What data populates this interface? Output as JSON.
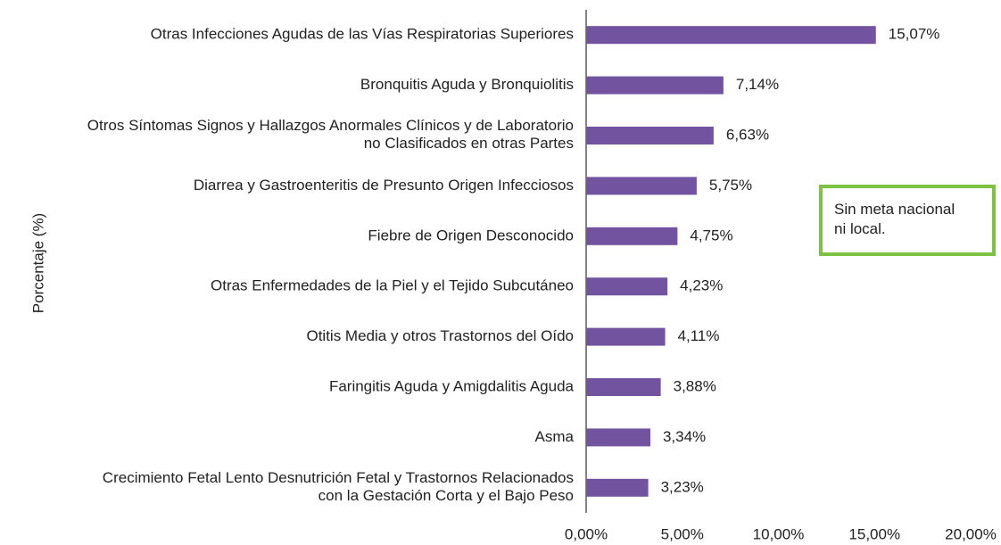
{
  "chart_data": {
    "type": "bar",
    "orientation": "horizontal",
    "y_label": "Porcentaje (%)",
    "annotation": "Sin meta nacional\nni local.",
    "annotation_color": "#7dc242",
    "color": "#7153a0",
    "categories": [
      "Otras Infecciones Agudas de las Vías Respiratorias Superiores",
      "Bronquitis Aguda y Bronquiolitis",
      "Otros Síntomas Signos y Hallazgos Anormales Clínicos y de Laboratorio\nno Clasificados en otras Partes",
      "Diarrea y Gastroenteritis de Presunto Origen Infecciosos",
      "Fiebre de Origen Desconocido",
      "Otras Enfermedades de la Piel  y el Tejido Subcutáneo",
      "Otitis Media y otros Trastornos del Oído",
      "Faringitis Aguda y Amigdalitis Aguda",
      "Asma",
      "Crecimiento Fetal Lento Desnutrición Fetal y Trastornos Relacionados\ncon la Gestación Corta y el Bajo Peso"
    ],
    "values": [
      15.07,
      7.14,
      6.63,
      5.75,
      4.75,
      4.23,
      4.11,
      3.88,
      3.34,
      3.23
    ],
    "value_labels": [
      "15,07%",
      "7,14%",
      "6,63%",
      "5,75%",
      "4,75%",
      "4,23%",
      "4,11%",
      "3,88%",
      "3,34%",
      "3,23%"
    ],
    "xlim": [
      0,
      20
    ],
    "xticks": [
      {
        "value": 0,
        "label": "0,00%"
      },
      {
        "value": 5,
        "label": "5,00%"
      },
      {
        "value": 10,
        "label": "10,00%"
      },
      {
        "value": 15,
        "label": "15,00%"
      },
      {
        "value": 20,
        "label": "20,00%"
      }
    ]
  }
}
